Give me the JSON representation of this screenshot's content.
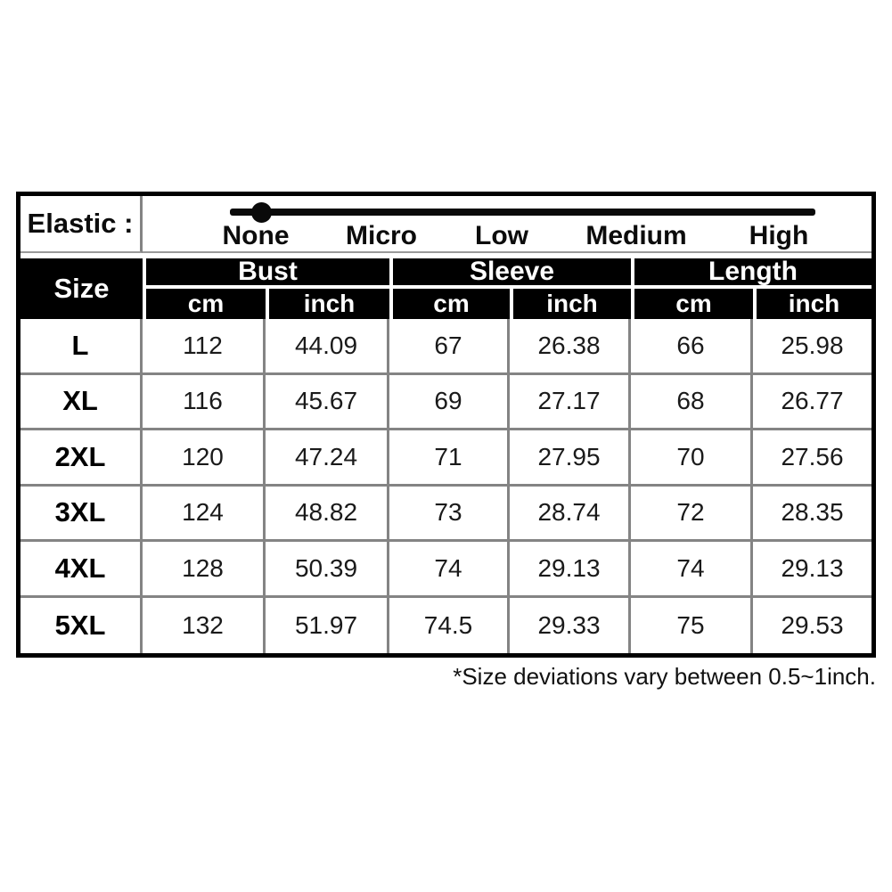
{
  "elastic": {
    "label": "Elastic :",
    "levels": [
      "None",
      "Micro",
      "Low",
      "Medium",
      "High"
    ],
    "selected_level": "None"
  },
  "table": {
    "corner_label": "Size",
    "groups": [
      "Bust",
      "Sleeve",
      "Length"
    ],
    "units": [
      "cm",
      "inch",
      "cm",
      "inch",
      "cm",
      "inch"
    ],
    "rows": [
      {
        "size": "L",
        "cells": [
          "112",
          "44.09",
          "67",
          "26.38",
          "66",
          "25.98"
        ]
      },
      {
        "size": "XL",
        "cells": [
          "116",
          "45.67",
          "69",
          "27.17",
          "68",
          "26.77"
        ]
      },
      {
        "size": "2XL",
        "cells": [
          "120",
          "47.24",
          "71",
          "27.95",
          "70",
          "27.56"
        ]
      },
      {
        "size": "3XL",
        "cells": [
          "124",
          "48.82",
          "73",
          "28.74",
          "72",
          "28.35"
        ]
      },
      {
        "size": "4XL",
        "cells": [
          "128",
          "50.39",
          "74",
          "29.13",
          "74",
          "29.13"
        ]
      },
      {
        "size": "5XL",
        "cells": [
          "132",
          "51.97",
          "74.5",
          "29.33",
          "75",
          "29.53"
        ]
      }
    ]
  },
  "footnote": "*Size deviations vary between 0.5~1inch.",
  "colors": {
    "header_bg": "#000000",
    "header_text": "#ffffff",
    "grid_line": "#848484",
    "slider": "#0a0a0a",
    "background": "#ffffff"
  },
  "chart_data": {
    "type": "table",
    "title": "Garment size chart with elastic level indicator",
    "elastic_scale": {
      "labels": [
        "None",
        "Micro",
        "Low",
        "Medium",
        "High"
      ],
      "selected": "None"
    },
    "columns": [
      "Size",
      "Bust cm",
      "Bust inch",
      "Sleeve cm",
      "Sleeve inch",
      "Length cm",
      "Length inch"
    ],
    "rows": [
      [
        "L",
        112,
        44.09,
        67,
        26.38,
        66,
        25.98
      ],
      [
        "XL",
        116,
        45.67,
        69,
        27.17,
        68,
        26.77
      ],
      [
        "2XL",
        120,
        47.24,
        71,
        27.95,
        70,
        27.56
      ],
      [
        "3XL",
        124,
        48.82,
        73,
        28.74,
        72,
        28.35
      ],
      [
        "4XL",
        128,
        50.39,
        74,
        29.13,
        74,
        29.13
      ],
      [
        "5XL",
        132,
        51.97,
        74.5,
        29.33,
        75,
        29.53
      ]
    ],
    "footnote": "*Size deviations vary between 0.5~1inch."
  }
}
